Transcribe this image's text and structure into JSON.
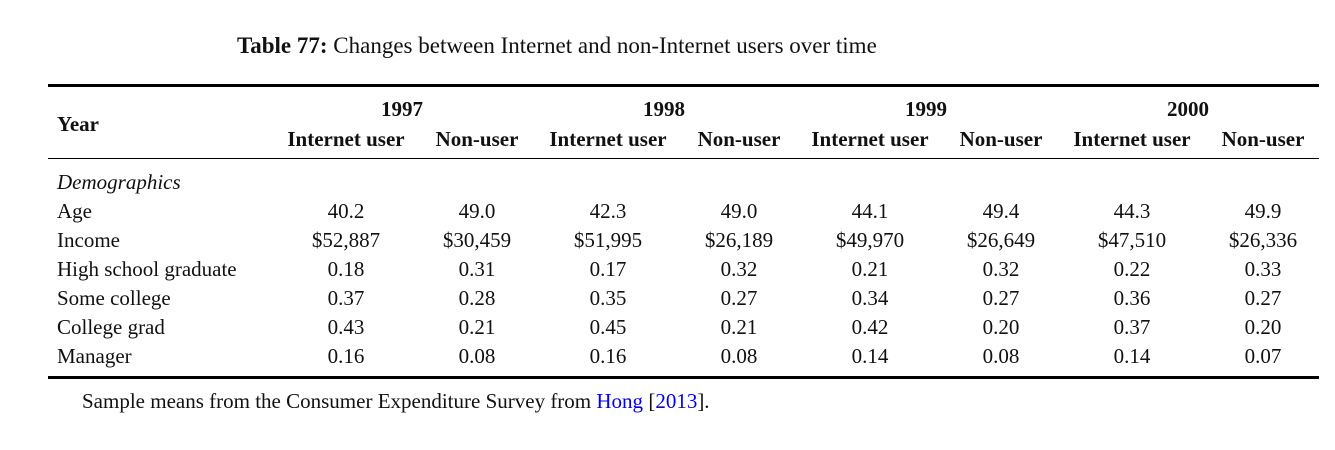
{
  "caption": {
    "label": "Table 77:",
    "text": "Changes between Internet and non-Internet users over time"
  },
  "header": {
    "year_label": "Year",
    "years": [
      "1997",
      "1998",
      "1999",
      "2000"
    ],
    "subcols": [
      "Internet user",
      "Non-user"
    ]
  },
  "section": "Demographics",
  "rows": [
    {
      "label": "Age",
      "values": [
        "40.2",
        "49.0",
        "42.3",
        "49.0",
        "44.1",
        "49.4",
        "44.3",
        "49.9"
      ]
    },
    {
      "label": "Income",
      "values": [
        "$52,887",
        "$30,459",
        "$51,995",
        "$26,189",
        "$49,970",
        "$26,649",
        "$47,510",
        "$26,336"
      ]
    },
    {
      "label": "High school graduate",
      "values": [
        "0.18",
        "0.31",
        "0.17",
        "0.32",
        "0.21",
        "0.32",
        "0.22",
        "0.33"
      ]
    },
    {
      "label": "Some college",
      "values": [
        "0.37",
        "0.28",
        "0.35",
        "0.27",
        "0.34",
        "0.27",
        "0.36",
        "0.27"
      ]
    },
    {
      "label": "College grad",
      "values": [
        "0.43",
        "0.21",
        "0.45",
        "0.21",
        "0.42",
        "0.20",
        "0.37",
        "0.20"
      ]
    },
    {
      "label": "Manager",
      "values": [
        "0.16",
        "0.08",
        "0.16",
        "0.08",
        "0.14",
        "0.08",
        "0.14",
        "0.07"
      ]
    }
  ],
  "note": {
    "before": "Sample means from the Consumer Expenditure Survey from ",
    "author": "Hong",
    "open_bracket": " [",
    "year": "2013",
    "close": "]."
  }
}
